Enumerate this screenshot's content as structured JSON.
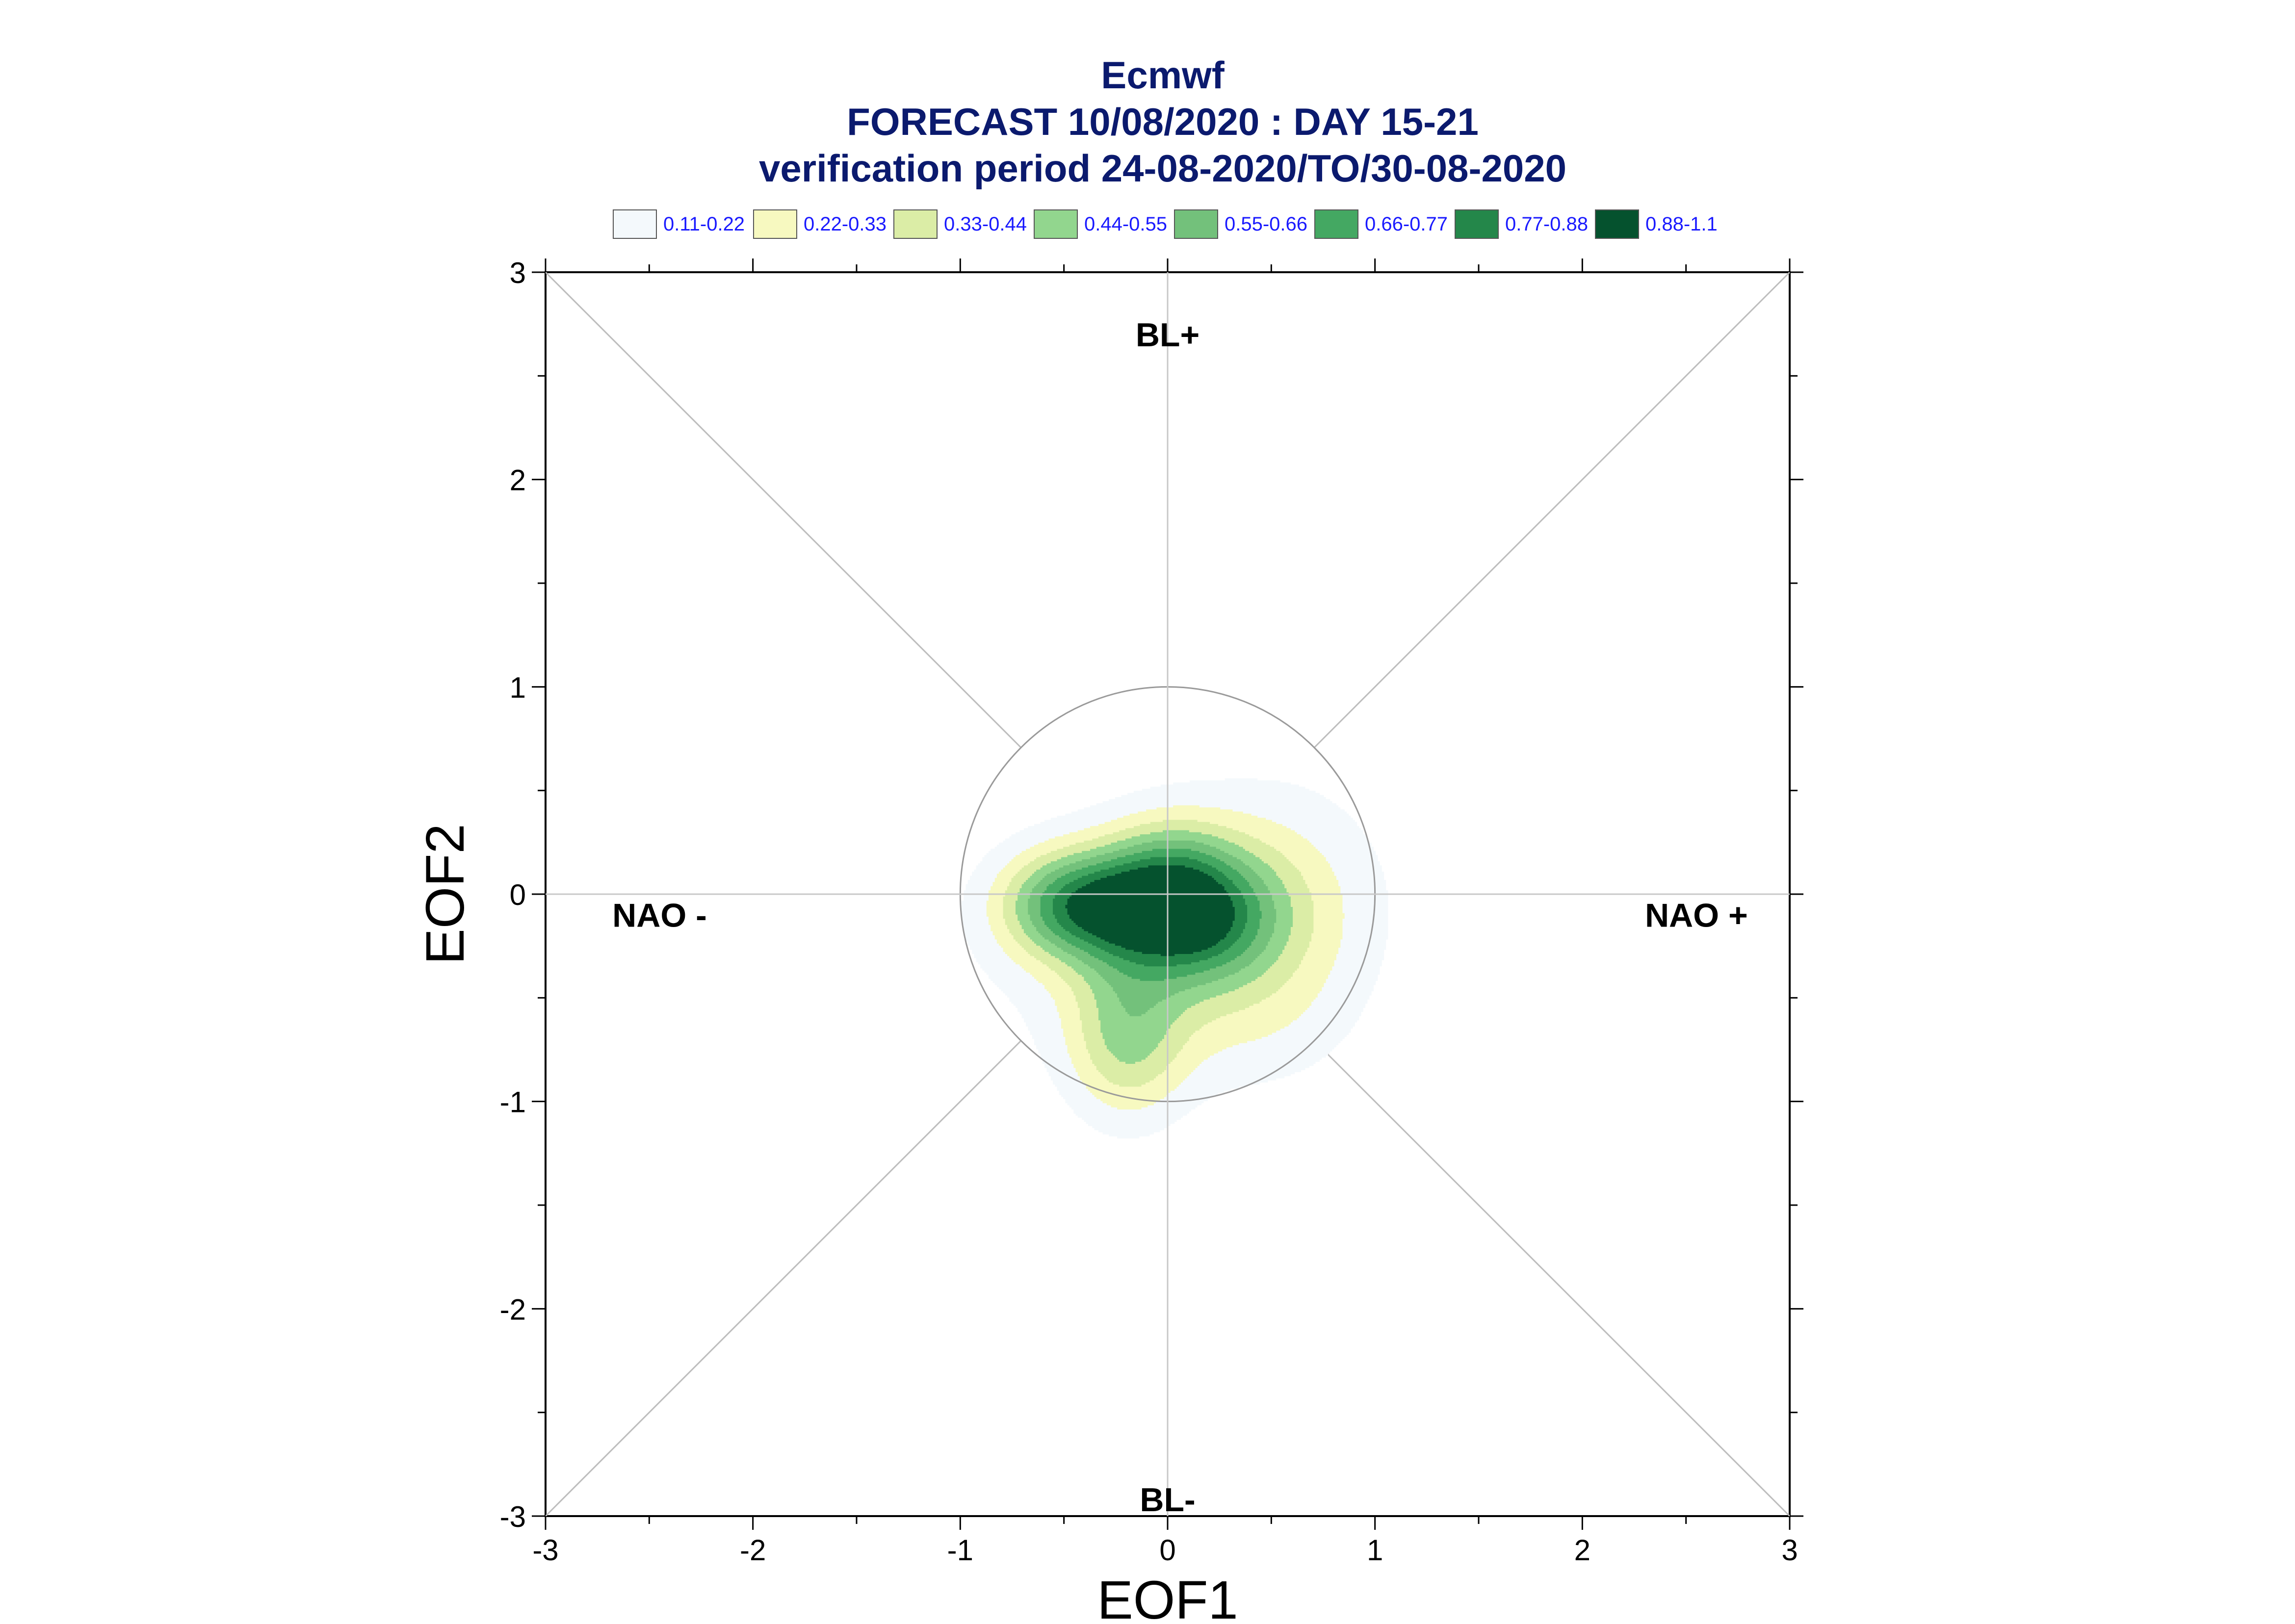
{
  "chart_data": {
    "type": "heatmap",
    "title_lines": [
      "Ecmwf",
      "FORECAST 10/08/2020 : DAY 15-21",
      "verification period 24-08-2020/TO/30-08-2020"
    ],
    "xlabel": "EOF1",
    "ylabel": "EOF2",
    "xlim": [
      -3,
      3
    ],
    "ylim": [
      -3,
      3
    ],
    "xticks": [
      -3,
      -2,
      -1,
      0,
      1,
      2,
      3
    ],
    "yticks": [
      -3,
      -2,
      -1,
      0,
      1,
      2,
      3
    ],
    "xtick_labels": [
      "-3",
      "-2",
      "-1",
      "0",
      "1",
      "2",
      "3"
    ],
    "ytick_labels": [
      "-3",
      "-2",
      "-1",
      "0",
      "1",
      "2",
      "3"
    ],
    "grid": false,
    "legend_placement": "top",
    "legend": [
      {
        "label": "0.11-0.22",
        "color": "#f4f9fc",
        "min": 0.11,
        "max": 0.22
      },
      {
        "label": "0.22-0.33",
        "color": "#f7f9c0",
        "min": 0.22,
        "max": 0.33
      },
      {
        "label": "0.33-0.44",
        "color": "#dbeda6",
        "min": 0.33,
        "max": 0.44
      },
      {
        "label": "0.44-0.55",
        "color": "#92d68e",
        "min": 0.44,
        "max": 0.55
      },
      {
        "label": "0.55-0.66",
        "color": "#73c17b",
        "min": 0.55,
        "max": 0.66
      },
      {
        "label": "0.66-0.77",
        "color": "#44a862",
        "min": 0.66,
        "max": 0.77
      },
      {
        "label": "0.77-0.88",
        "color": "#24874a",
        "min": 0.77,
        "max": 0.88
      },
      {
        "label": "0.88-1.1",
        "color": "#05522e",
        "min": 0.88,
        "max": 1.1
      }
    ],
    "regime_labels": [
      {
        "text": "BL+",
        "x": 0.0,
        "y": 2.7
      },
      {
        "text": "BL-",
        "x": 0.0,
        "y": -2.92
      },
      {
        "text": "NAO -",
        "x": -2.45,
        "y": -0.1
      },
      {
        "text": "NAO +",
        "x": 2.55,
        "y": -0.1
      }
    ],
    "reference_circle": {
      "center": [
        0,
        0
      ],
      "radius": 1.0
    },
    "density_blobs": [
      {
        "x": 0.1,
        "y": -0.1,
        "sx": 0.28,
        "sy": 0.22,
        "amp": 0.7
      },
      {
        "x": 0.1,
        "y": -0.1,
        "sx": 0.08,
        "sy": 0.07,
        "amp": 0.3
      },
      {
        "x": 0.0,
        "y": 0.15,
        "sx": 0.2,
        "sy": 0.17,
        "amp": 0.2
      },
      {
        "x": -0.52,
        "y": -0.05,
        "sx": 0.22,
        "sy": 0.18,
        "amp": 0.5
      },
      {
        "x": -0.25,
        "y": -0.05,
        "sx": 0.2,
        "sy": 0.18,
        "amp": 0.3
      },
      {
        "x": -0.2,
        "y": -0.7,
        "sx": 0.2,
        "sy": 0.28,
        "amp": 0.36
      },
      {
        "x": 0.3,
        "y": -0.1,
        "sx": 0.5,
        "sy": 0.42,
        "amp": 0.18
      },
      {
        "x": -0.3,
        "y": -0.3,
        "sx": 0.6,
        "sy": 0.45,
        "amp": 0.12
      },
      {
        "x": 0.6,
        "y": 0.0,
        "sx": 0.35,
        "sy": 0.45,
        "amp": 0.1
      },
      {
        "x": 0.4,
        "y": -0.65,
        "sx": 0.35,
        "sy": 0.25,
        "amp": 0.08
      }
    ]
  }
}
